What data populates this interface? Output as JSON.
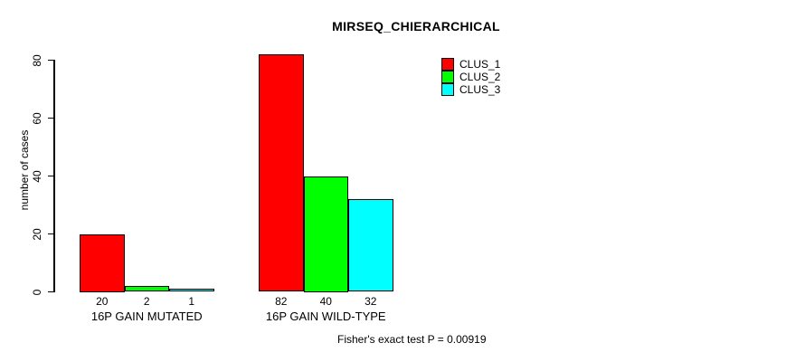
{
  "chart_data": {
    "type": "bar",
    "title": "MIRSEQ_CHIERARCHICAL",
    "ylabel": "number of cases",
    "ylim": [
      0,
      82
    ],
    "yticks": [
      0,
      20,
      40,
      60,
      80
    ],
    "grid": false,
    "categories": [
      "16P GAIN MUTATED",
      "16P GAIN WILD-TYPE"
    ],
    "series": [
      {
        "name": "CLUS_1",
        "color": "#FF0000",
        "values": [
          20,
          82
        ]
      },
      {
        "name": "CLUS_2",
        "color": "#00FF00",
        "values": [
          2,
          40
        ]
      },
      {
        "name": "CLUS_3",
        "color": "#00FFFF",
        "values": [
          1,
          32
        ]
      }
    ],
    "bar_value_labels": {
      "16P GAIN MUTATED": [
        20,
        2,
        1
      ],
      "16P GAIN WILD-TYPE": [
        82,
        40,
        32
      ]
    },
    "legend": [
      {
        "label": "CLUS_1",
        "color": "#FF0000"
      },
      {
        "label": "CLUS_2",
        "color": "#00FF00"
      },
      {
        "label": "CLUS_3",
        "color": "#00FFFF"
      }
    ],
    "legend_position": "top-right",
    "annotation": "Fisher's exact test P = 0.00919",
    "bar_border_color": "#000000",
    "background_color": "#FFFFFF"
  }
}
